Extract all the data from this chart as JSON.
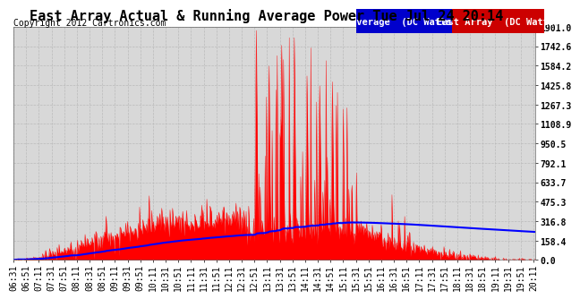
{
  "title": "East Array Actual & Running Average Power Tue Jul 24 20:14",
  "copyright": "Copyright 2012 Cartronics.com",
  "legend_avg": "Average  (DC Watts)",
  "legend_east": "East Array  (DC Watts)",
  "yticks": [
    0.0,
    158.4,
    316.8,
    475.3,
    633.7,
    792.1,
    950.5,
    1108.9,
    1267.3,
    1425.8,
    1584.2,
    1742.6,
    1901.0
  ],
  "ymax": 1901.0,
  "ymin": 0.0,
  "bg_color": "#ffffff",
  "plot_bg_color": "#d8d8d8",
  "grid_color": "#bbbbbb",
  "fill_color": "#ff0000",
  "avg_line_color": "#0000ff",
  "title_fontsize": 11,
  "axis_fontsize": 7,
  "legend_fontsize": 7.5,
  "copyright_fontsize": 7
}
